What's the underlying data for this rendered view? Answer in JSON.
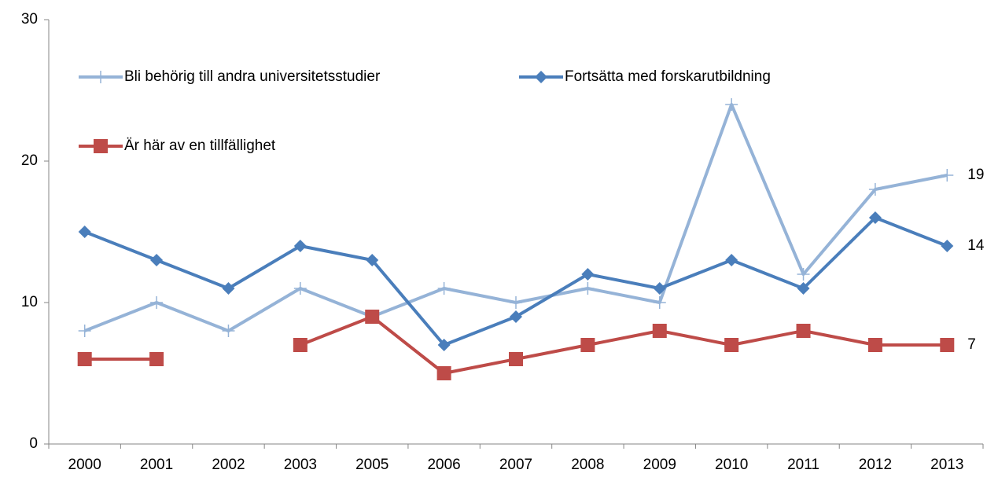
{
  "chart_data": {
    "type": "line",
    "categories": [
      "2000",
      "2001",
      "2002",
      "2003",
      "2005",
      "2006",
      "2007",
      "2008",
      "2009",
      "2010",
      "2011",
      "2012",
      "2013"
    ],
    "series": [
      {
        "name": "Bli behörig till andra universitetsstudier",
        "color": "#95b3d7",
        "marker": "plus",
        "values": [
          8,
          10,
          8,
          11,
          9,
          11,
          10,
          11,
          10,
          24,
          12,
          18,
          19
        ]
      },
      {
        "name": "Fortsätta med forskarutbildning",
        "color": "#4a7ebb",
        "marker": "diamond",
        "values": [
          15,
          13,
          11,
          14,
          13,
          7,
          9,
          12,
          11,
          13,
          11,
          16,
          14
        ]
      },
      {
        "name": "Är här av en tillfällighet",
        "color": "#be4b48",
        "marker": "square",
        "values": [
          6,
          6,
          null,
          7,
          9,
          5,
          6,
          7,
          8,
          7,
          8,
          7,
          7
        ]
      }
    ],
    "ylim": [
      0,
      30
    ],
    "yticks": [
      0,
      10,
      20,
      30
    ],
    "grid": false
  }
}
